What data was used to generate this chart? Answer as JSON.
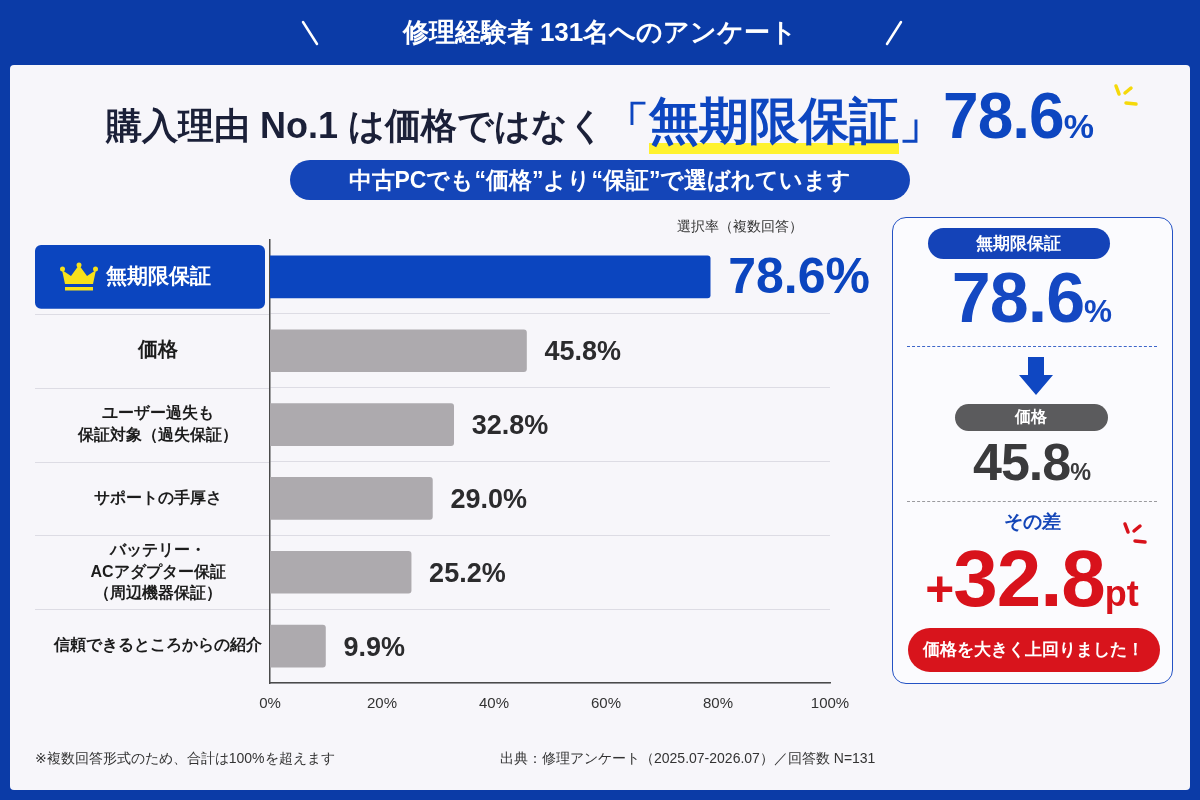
{
  "chart_data": [
    {
      "type": "bar",
      "orientation": "horizontal",
      "title": "購入理由 No.1 は価格ではなく「無期限保証」78.6%",
      "subtitle": "中古PCでも“価格”より“保証”で選ばれています",
      "xlabel": "選択率（複数回答）",
      "categories": [
        "無期限保証",
        "価格",
        "ユーザー過失も保証対象（過失保証）",
        "サポートの手厚さ",
        "バッテリー・ACアダプター保証（周辺機器保証）",
        "信頼できるところからの紹介"
      ],
      "values": [
        78.6,
        45.8,
        32.8,
        29.0,
        25.2,
        9.9
      ],
      "colors": [
        "#0b45bf",
        "#adaaae",
        "#adaaae",
        "#adaaae",
        "#adaaae",
        "#adaaae"
      ],
      "value_labels": [
        "78.6%",
        "45.8%",
        "32.8%",
        "29.0%",
        "25.2%",
        "9.9%"
      ],
      "xlim": [
        0,
        100
      ],
      "xticks": [
        {
          "value": 0,
          "label": "0%"
        },
        {
          "value": 20,
          "label": "20%"
        },
        {
          "value": 40,
          "label": "40%"
        },
        {
          "value": 60,
          "label": "60%"
        },
        {
          "value": 80,
          "label": "80%"
        },
        {
          "value": 100,
          "label": "100%"
        }
      ],
      "grid": "y",
      "annotations": [
        "修理経験者 131名へのアンケート",
        "※複数回答形式のため、合計は100%を超えます",
        "出典：修理アンケート（2025.07-2026.07）／回答数 N=131"
      ]
    },
    {
      "type": "other",
      "annotations": [
        "無期限保証",
        "78.6%",
        "価格",
        "45.8%",
        "その差",
        "+32.8pt",
        "価格を大きく上回りました！"
      ]
    }
  ]
}
